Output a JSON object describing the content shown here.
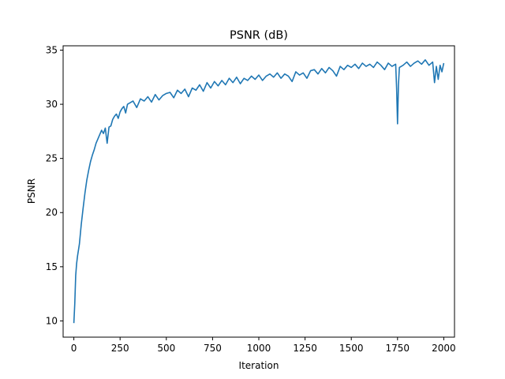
{
  "chart_data": {
    "type": "line",
    "title": "PSNR (dB)",
    "xlabel": "Iteration",
    "ylabel": "PSNR",
    "xlim": [
      -58,
      2058
    ],
    "ylim": [
      8.5,
      35.4
    ],
    "xticks": [
      0,
      250,
      500,
      750,
      1000,
      1250,
      1500,
      1750,
      2000
    ],
    "yticks": [
      10,
      15,
      20,
      25,
      30,
      35
    ],
    "grid": false,
    "legend": "none",
    "series": [
      {
        "color": "#1f77b4",
        "x": [
          0,
          5,
          10,
          15,
          20,
          30,
          40,
          50,
          60,
          70,
          80,
          90,
          100,
          110,
          120,
          130,
          140,
          150,
          160,
          170,
          180,
          190,
          200,
          210,
          220,
          230,
          240,
          250,
          260,
          270,
          280,
          290,
          300,
          320,
          340,
          360,
          380,
          400,
          420,
          440,
          460,
          480,
          500,
          520,
          540,
          560,
          580,
          600,
          620,
          640,
          660,
          680,
          700,
          720,
          740,
          760,
          780,
          800,
          820,
          840,
          860,
          880,
          900,
          920,
          940,
          960,
          980,
          1000,
          1020,
          1040,
          1060,
          1080,
          1100,
          1120,
          1140,
          1160,
          1180,
          1200,
          1220,
          1240,
          1260,
          1280,
          1300,
          1320,
          1340,
          1360,
          1380,
          1400,
          1420,
          1440,
          1460,
          1480,
          1500,
          1520,
          1540,
          1560,
          1580,
          1600,
          1620,
          1640,
          1660,
          1680,
          1700,
          1720,
          1740,
          1745,
          1750,
          1755,
          1760,
          1780,
          1800,
          1820,
          1840,
          1860,
          1880,
          1900,
          1920,
          1940,
          1950,
          1960,
          1970,
          1980,
          1990,
          2000
        ],
        "y": [
          9.8,
          11.6,
          14.2,
          15.3,
          16.0,
          17.1,
          18.9,
          20.4,
          21.8,
          23.0,
          23.9,
          24.7,
          25.3,
          25.8,
          26.4,
          26.8,
          27.2,
          27.6,
          27.3,
          27.8,
          26.4,
          27.9,
          28.0,
          28.6,
          28.9,
          29.1,
          28.7,
          29.3,
          29.6,
          29.8,
          29.2,
          30.0,
          30.1,
          30.3,
          29.7,
          30.5,
          30.3,
          30.7,
          30.2,
          30.9,
          30.4,
          30.8,
          31.0,
          31.1,
          30.6,
          31.3,
          31.0,
          31.4,
          30.7,
          31.5,
          31.3,
          31.8,
          31.2,
          32.0,
          31.5,
          32.1,
          31.7,
          32.2,
          31.8,
          32.4,
          32.0,
          32.5,
          31.9,
          32.4,
          32.2,
          32.6,
          32.3,
          32.7,
          32.2,
          32.6,
          32.8,
          32.5,
          32.9,
          32.4,
          32.8,
          32.6,
          32.1,
          33.0,
          32.7,
          32.9,
          32.4,
          33.1,
          33.2,
          32.8,
          33.3,
          32.9,
          33.4,
          33.1,
          32.6,
          33.5,
          33.2,
          33.6,
          33.4,
          33.7,
          33.3,
          33.8,
          33.5,
          33.7,
          33.4,
          33.9,
          33.6,
          33.2,
          33.8,
          33.5,
          33.7,
          31.5,
          28.2,
          31.8,
          33.4,
          33.6,
          33.9,
          33.5,
          33.8,
          34.0,
          33.7,
          34.1,
          33.6,
          33.9,
          32.0,
          33.5,
          32.3,
          33.6,
          33.0,
          33.8
        ]
      }
    ]
  }
}
